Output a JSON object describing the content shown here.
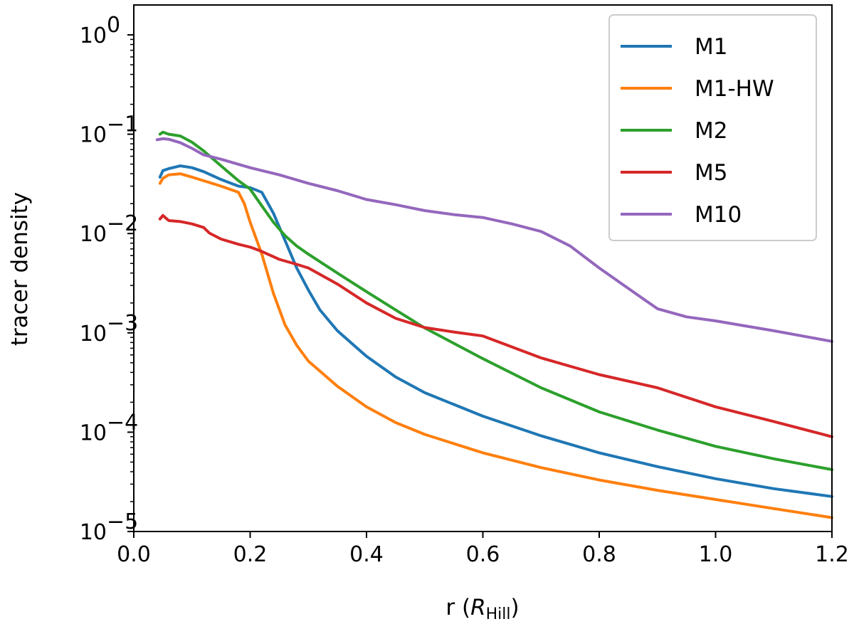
{
  "chart_data": {
    "type": "line",
    "xlabel_main": "r (",
    "xlabel_italic": "R",
    "xlabel_sub": "Hill",
    "xlabel_close": ")",
    "ylabel": "tracer density",
    "xscale": "linear",
    "yscale": "log",
    "xlim": [
      0.0,
      1.2
    ],
    "ylim": [
      1e-05,
      2
    ],
    "xticks": [
      0.0,
      0.2,
      0.4,
      0.6,
      0.8,
      1.0,
      1.2
    ],
    "xtick_labels": [
      "0.0",
      "0.2",
      "0.4",
      "0.6",
      "0.8",
      "1.0",
      "1.2"
    ],
    "yticks": [
      {
        "value": 1,
        "base": "10",
        "exp": "0"
      },
      {
        "value": 0.1,
        "base": "10",
        "exp": "−1"
      },
      {
        "value": 0.01,
        "base": "10",
        "exp": "−2"
      },
      {
        "value": 0.001,
        "base": "10",
        "exp": "−3"
      },
      {
        "value": 0.0001,
        "base": "10",
        "exp": "−4"
      },
      {
        "value": 1e-05,
        "base": "10",
        "exp": "−5"
      }
    ],
    "legend_position": "top-right",
    "series": [
      {
        "name": "M1",
        "color": "#1f77b4",
        "x": [
          0.045,
          0.05,
          0.06,
          0.08,
          0.1,
          0.12,
          0.15,
          0.18,
          0.2,
          0.22,
          0.24,
          0.26,
          0.28,
          0.3,
          0.32,
          0.35,
          0.4,
          0.45,
          0.5,
          0.6,
          0.7,
          0.8,
          0.9,
          1.0,
          1.1,
          1.2
        ],
        "y": [
          0.037,
          0.043,
          0.045,
          0.048,
          0.046,
          0.042,
          0.035,
          0.03,
          0.029,
          0.026,
          0.016,
          0.0085,
          0.0045,
          0.0027,
          0.0017,
          0.00105,
          0.00058,
          0.00036,
          0.00025,
          0.000145,
          9.2e-05,
          6.2e-05,
          4.5e-05,
          3.4e-05,
          2.7e-05,
          2.25e-05
        ]
      },
      {
        "name": "M1-HW",
        "color": "#ff7f0e",
        "x": [
          0.045,
          0.05,
          0.06,
          0.08,
          0.1,
          0.12,
          0.15,
          0.18,
          0.19,
          0.2,
          0.22,
          0.24,
          0.26,
          0.28,
          0.3,
          0.35,
          0.4,
          0.45,
          0.5,
          0.6,
          0.7,
          0.8,
          0.9,
          1.0,
          1.1,
          1.2
        ],
        "y": [
          0.032,
          0.036,
          0.039,
          0.04,
          0.037,
          0.034,
          0.03,
          0.026,
          0.02,
          0.013,
          0.0062,
          0.0025,
          0.0012,
          0.00075,
          0.00052,
          0.00029,
          0.00018,
          0.000125,
          9.5e-05,
          6.2e-05,
          4.4e-05,
          3.3e-05,
          2.6e-05,
          2.1e-05,
          1.7e-05,
          1.38e-05
        ]
      },
      {
        "name": "M2",
        "color": "#2ca02c",
        "x": [
          0.045,
          0.05,
          0.06,
          0.08,
          0.1,
          0.12,
          0.15,
          0.18,
          0.2,
          0.22,
          0.24,
          0.26,
          0.28,
          0.3,
          0.35,
          0.4,
          0.45,
          0.5,
          0.6,
          0.7,
          0.8,
          0.9,
          1.0,
          1.1,
          1.2
        ],
        "y": [
          0.1,
          0.105,
          0.1,
          0.096,
          0.083,
          0.068,
          0.048,
          0.034,
          0.028,
          0.019,
          0.013,
          0.0095,
          0.0075,
          0.0062,
          0.004,
          0.0026,
          0.0017,
          0.00112,
          0.00055,
          0.00028,
          0.00016,
          0.000105,
          7.2e-05,
          5.4e-05,
          4.2e-05
        ]
      },
      {
        "name": "M5",
        "color": "#d62728",
        "x": [
          0.045,
          0.05,
          0.055,
          0.06,
          0.08,
          0.1,
          0.12,
          0.13,
          0.15,
          0.18,
          0.2,
          0.22,
          0.25,
          0.28,
          0.3,
          0.35,
          0.4,
          0.45,
          0.5,
          0.55,
          0.6,
          0.7,
          0.8,
          0.9,
          1.0,
          1.1,
          1.2
        ],
        "y": [
          0.014,
          0.0152,
          0.0143,
          0.0135,
          0.0132,
          0.0125,
          0.0115,
          0.0101,
          0.0088,
          0.0078,
          0.0073,
          0.0066,
          0.0055,
          0.0049,
          0.0045,
          0.0031,
          0.002,
          0.0014,
          0.00113,
          0.00102,
          0.00093,
          0.00056,
          0.00038,
          0.00028,
          0.00018,
          0.000128,
          9e-05
        ]
      },
      {
        "name": "M10",
        "color": "#9467bd",
        "x": [
          0.04,
          0.05,
          0.06,
          0.08,
          0.1,
          0.12,
          0.15,
          0.2,
          0.25,
          0.3,
          0.35,
          0.4,
          0.45,
          0.5,
          0.55,
          0.6,
          0.65,
          0.7,
          0.75,
          0.8,
          0.85,
          0.9,
          0.95,
          1.0,
          1.1,
          1.2
        ],
        "y": [
          0.088,
          0.09,
          0.089,
          0.082,
          0.072,
          0.062,
          0.056,
          0.046,
          0.039,
          0.032,
          0.027,
          0.022,
          0.0195,
          0.017,
          0.0155,
          0.0145,
          0.0125,
          0.0105,
          0.0075,
          0.0045,
          0.0028,
          0.00175,
          0.00145,
          0.00132,
          0.00105,
          0.00082
        ]
      }
    ]
  }
}
